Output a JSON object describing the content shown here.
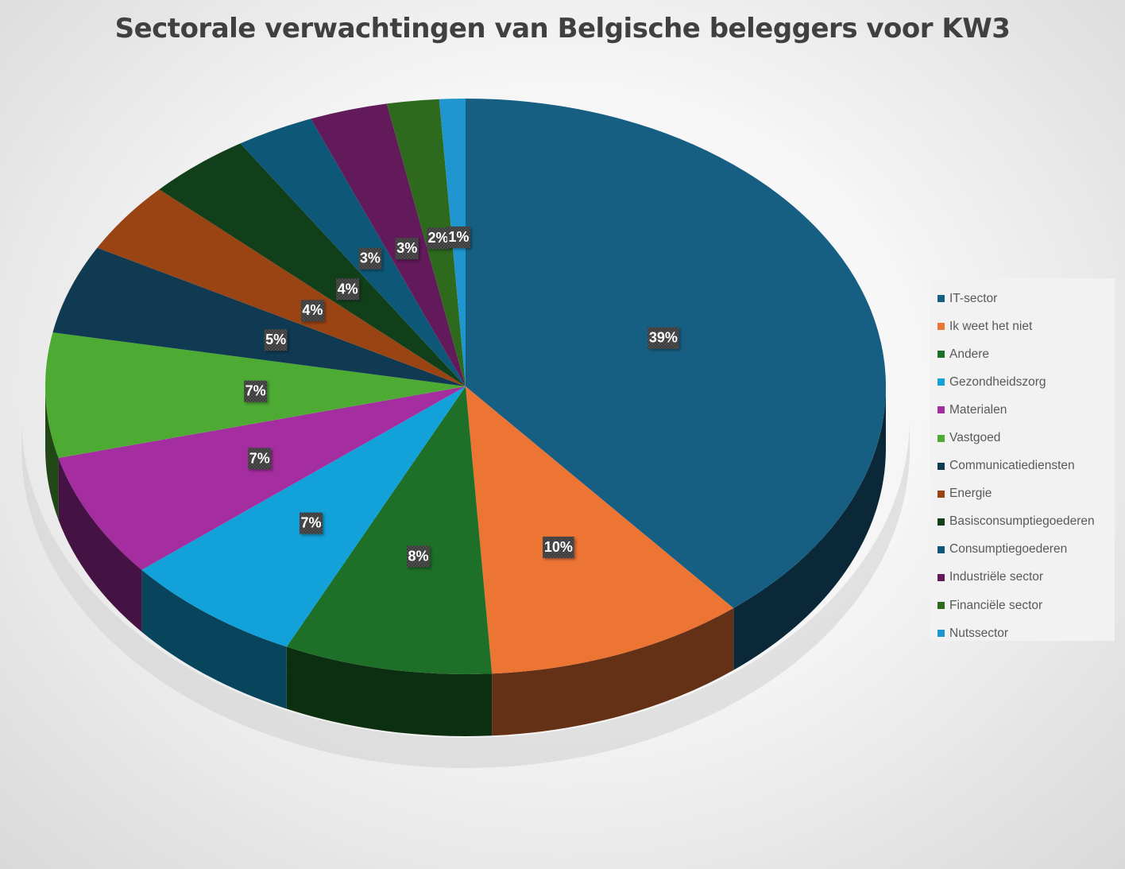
{
  "chart_data": {
    "type": "pie",
    "title": "Sectorale verwachtingen van Belgische beleggers voor KW3",
    "legend_position": "right",
    "slices": [
      {
        "name": "IT-sector",
        "value": 39,
        "label": "39%",
        "color": "#175F82"
      },
      {
        "name": "Ik weet het niet",
        "value": 10,
        "label": "10%",
        "color": "#ED7534"
      },
      {
        "name": "Andere",
        "value": 8,
        "label": "8%",
        "color": "#1E6F28"
      },
      {
        "name": "Gezondheidszorg",
        "value": 7,
        "label": "7%",
        "color": "#12A1D9"
      },
      {
        "name": "Materialen",
        "value": 7,
        "label": "7%",
        "color": "#A42DA0"
      },
      {
        "name": "Vastgoed",
        "value": 7,
        "label": "7%",
        "color": "#4DAA33"
      },
      {
        "name": "Communicatiediensten",
        "value": 5,
        "label": "5%",
        "color": "#0F3A52"
      },
      {
        "name": "Energie",
        "value": 4,
        "label": "4%",
        "color": "#9A4414"
      },
      {
        "name": "Basisconsumptiegoederen",
        "value": 4,
        "label": "4%",
        "color": "#113F1A"
      },
      {
        "name": "Consumptiegoederen",
        "value": 3,
        "label": "3%",
        "color": "#0D5878"
      },
      {
        "name": "Industriële sector",
        "value": 3,
        "label": "3%",
        "color": "#621A5B"
      },
      {
        "name": "Financiële sector",
        "value": 2,
        "label": "2%",
        "color": "#2E6A1E"
      },
      {
        "name": "Nutssector",
        "value": 1,
        "label": "1%",
        "color": "#2096D0"
      }
    ]
  }
}
